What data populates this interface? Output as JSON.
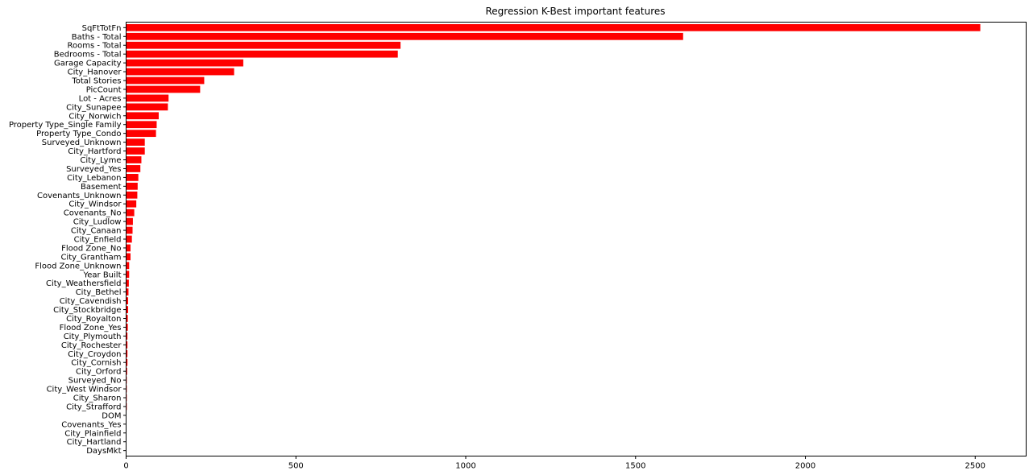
{
  "chart_data": {
    "type": "bar",
    "orientation": "horizontal",
    "title": "Regression K-Best important features",
    "xlabel": "",
    "ylabel": "",
    "xlim": [
      0,
      2650
    ],
    "xticks": [
      0,
      500,
      1000,
      1500,
      2000,
      2500
    ],
    "grid": false,
    "bar_color": "#ff0000",
    "categories": [
      "SqFtTotFn",
      "Baths - Total",
      "Rooms - Total",
      "Bedrooms - Total",
      "Garage Capacity",
      "City_Hanover",
      "Total Stories",
      "PicCount",
      "Lot - Acres",
      "City_Sunapee",
      "City_Norwich",
      "Property Type_Single Family",
      "Property Type_Condo",
      "Surveyed_Unknown",
      "City_Hartford",
      "City_Lyme",
      "Surveyed_Yes",
      "City_Lebanon",
      "Basement",
      "Covenants_Unknown",
      "City_Windsor",
      "Covenants_No",
      "City_Ludlow",
      "City_Canaan",
      "City_Enfield",
      "Flood Zone_No",
      "City_Grantham",
      "Flood Zone_Unknown",
      "Year Built",
      "City_Weathersfield",
      "City_Bethel",
      "City_Cavendish",
      "City_Stockbridge",
      "City_Royalton",
      "Flood Zone_Yes",
      "City_Plymouth",
      "City_Rochester",
      "City_Croydon",
      "City_Cornish",
      "City_Orford",
      "Surveyed_No",
      "City_West Windsor",
      "City_Sharon",
      "City_Strafford",
      "DOM",
      "Covenants_Yes",
      "City_Plainfield",
      "City_Hartland",
      "DaysMkt"
    ],
    "values": [
      2515,
      1640,
      808,
      800,
      345,
      318,
      230,
      218,
      125,
      123,
      96,
      90,
      88,
      55,
      55,
      45,
      42,
      36,
      34,
      33,
      30,
      24,
      20,
      19,
      17,
      13,
      13,
      9,
      9,
      8,
      7,
      6,
      6,
      5,
      5,
      4,
      4,
      4,
      4,
      3,
      2,
      2,
      2,
      2,
      1,
      1,
      1,
      1,
      1
    ]
  }
}
